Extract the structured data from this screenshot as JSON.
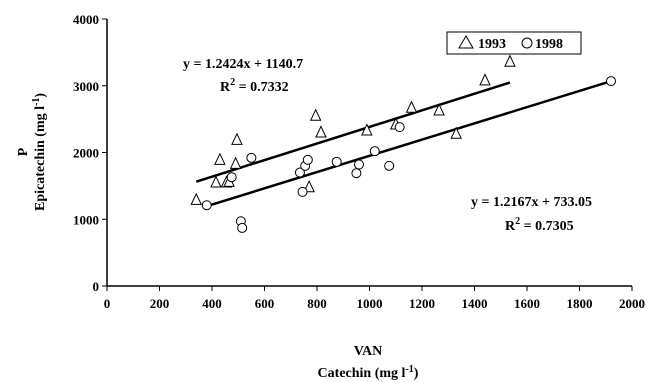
{
  "chart_data": {
    "type": "scatter",
    "xlim": [
      0,
      2000
    ],
    "ylim": [
      0,
      4000
    ],
    "x_ticks": [
      0,
      200,
      400,
      600,
      800,
      1000,
      1200,
      1400,
      1600,
      1800,
      2000
    ],
    "y_ticks": [
      0,
      1000,
      2000,
      3000,
      4000
    ],
    "xlabel_line1": "VAN",
    "xlabel_line2": "Catechin  (mg l",
    "xlabel_sup": "-1",
    "xlabel_close": ")",
    "ylabel_line1": "P",
    "ylabel_line2": "Epicatechin (mg l",
    "ylabel_sup": "-1",
    "ylabel_close": ")",
    "grid": false,
    "legend_position": "top-right",
    "series": [
      {
        "name": "1993",
        "marker": "triangle",
        "points": [
          [
            340,
            1290
          ],
          [
            415,
            1550
          ],
          [
            430,
            1890
          ],
          [
            455,
            1550
          ],
          [
            465,
            1560
          ],
          [
            490,
            1830
          ],
          [
            495,
            2190
          ],
          [
            770,
            1480
          ],
          [
            795,
            2550
          ],
          [
            815,
            2300
          ],
          [
            990,
            2330
          ],
          [
            1100,
            2420
          ],
          [
            1160,
            2670
          ],
          [
            1265,
            2630
          ],
          [
            1330,
            2280
          ],
          [
            1440,
            3080
          ],
          [
            1535,
            3360
          ]
        ],
        "trendline": {
          "slope": 1.2424,
          "intercept": 1140.7,
          "x_range": [
            340,
            1535
          ]
        },
        "equation": "y = 1.2424x + 1140.7",
        "r2_label": "R",
        "r2_sup": "2",
        "r2_value": " = 0.7332"
      },
      {
        "name": "1998",
        "marker": "circle",
        "points": [
          [
            380,
            1210
          ],
          [
            475,
            1630
          ],
          [
            510,
            970
          ],
          [
            515,
            870
          ],
          [
            550,
            1920
          ],
          [
            735,
            1700
          ],
          [
            745,
            1410
          ],
          [
            755,
            1800
          ],
          [
            765,
            1890
          ],
          [
            875,
            1860
          ],
          [
            950,
            1690
          ],
          [
            960,
            1820
          ],
          [
            1020,
            2020
          ],
          [
            1075,
            1800
          ],
          [
            1115,
            2380
          ],
          [
            1920,
            3070
          ]
        ],
        "trendline": {
          "slope": 1.2167,
          "intercept": 733.05,
          "x_range": [
            380,
            1920
          ]
        },
        "equation": "y = 1.2167x + 733.05",
        "r2_label": "R",
        "r2_sup": "2",
        "r2_value": " = 0.7305"
      }
    ]
  }
}
